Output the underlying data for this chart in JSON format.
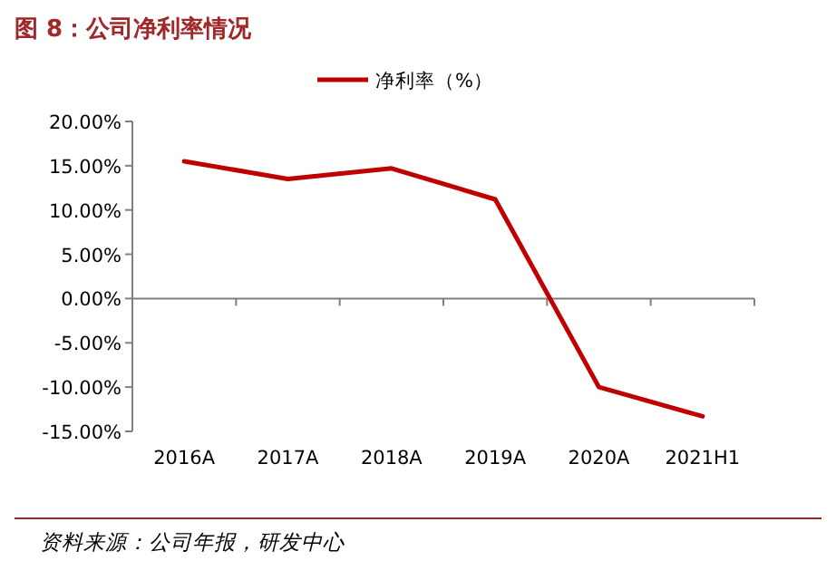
{
  "chart_data": {
    "type": "line",
    "title": "图 8：公司净利率情况",
    "categories": [
      "2016A",
      "2017A",
      "2018A",
      "2019A",
      "2020A",
      "2021H1"
    ],
    "series": [
      {
        "name": "净利率（%）",
        "color": "#c00000",
        "values": [
          15.5,
          13.5,
          14.7,
          11.2,
          -10.0,
          -13.3
        ]
      }
    ],
    "ylim": [
      -15,
      20
    ],
    "yticks": [
      {
        "value": -15,
        "label": "-15.00%"
      },
      {
        "value": -10,
        "label": "-10.00%"
      },
      {
        "value": -5,
        "label": "-5.00%"
      },
      {
        "value": 0,
        "label": "0.00%"
      },
      {
        "value": 5,
        "label": "5.00%"
      },
      {
        "value": 10,
        "label": "10.00%"
      },
      {
        "value": 15,
        "label": "15.00%"
      },
      {
        "value": 20,
        "label": "20.00%"
      }
    ],
    "legend": "top",
    "marker": "none",
    "line_style": "solid",
    "annotations": [
      "资料来源：公司年报，研发中心"
    ]
  }
}
